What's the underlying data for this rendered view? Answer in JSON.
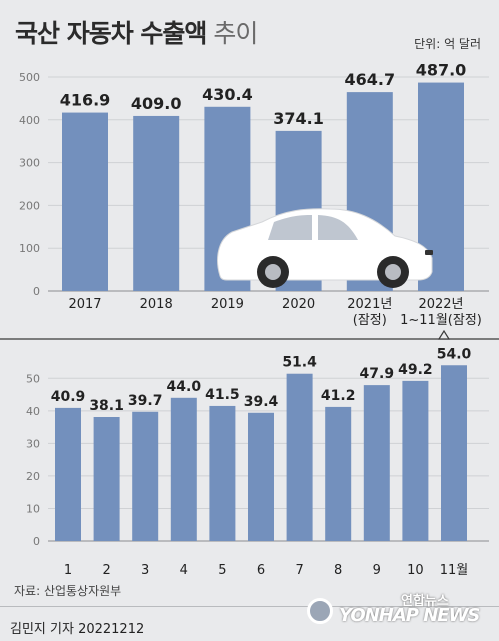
{
  "title": {
    "main": "국산 자동차 수출액",
    "sub": "추이"
  },
  "unit": "단위: 억 달러",
  "chart_data": [
    {
      "type": "bar",
      "categories": [
        "2017",
        "2018",
        "2019",
        "2020",
        "2021년\n(잠정)",
        "2022년\n1~11월(잠정)"
      ],
      "values": [
        416.9,
        409.0,
        430.4,
        374.1,
        464.7,
        487.0
      ],
      "value_labels": [
        "416.9",
        "409.0",
        "430.4",
        "374.1",
        "464.7",
        "487.0"
      ],
      "ylim": [
        0,
        500
      ],
      "yticks": [
        "0",
        "100",
        "200",
        "300",
        "400",
        "500"
      ],
      "grid": true,
      "color": "#7390bd"
    },
    {
      "type": "bar",
      "categories": [
        "1",
        "2",
        "3",
        "4",
        "5",
        "6",
        "7",
        "8",
        "9",
        "10",
        "11월"
      ],
      "values": [
        40.9,
        38.1,
        39.7,
        44.0,
        41.5,
        39.4,
        51.4,
        41.2,
        47.9,
        49.2,
        54.0
      ],
      "value_labels": [
        "40.9",
        "38.1",
        "39.7",
        "44.0",
        "41.5",
        "39.4",
        "51.4",
        "41.2",
        "47.9",
        "49.2",
        "54.0"
      ],
      "ylim": [
        0,
        55
      ],
      "yticks": [
        "0",
        "10",
        "20",
        "30",
        "40",
        "50"
      ],
      "grid": true,
      "color": "#7390bd"
    }
  ],
  "source": "자료: 산업통상자원부",
  "byline": "김민지 기자  20221212",
  "logo": {
    "ko": "연합뉴스",
    "en": "YONHAP NEWS"
  },
  "car_icon": "sedan-car-icon"
}
